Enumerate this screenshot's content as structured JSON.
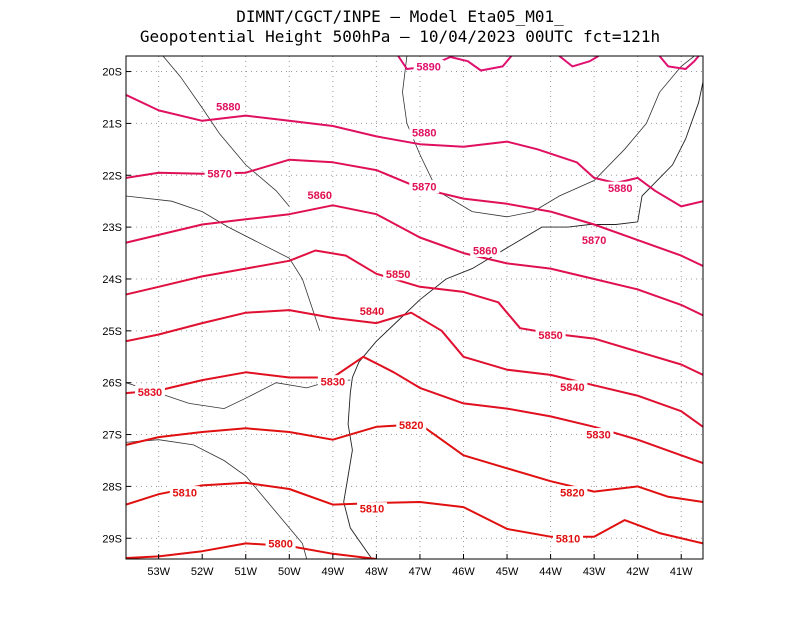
{
  "header": {
    "line1": "DIMNT/CGCT/INPE –  Model Eta05_M01_",
    "line2": "Geopotential Height 500hPa –  10/04/2023 00UTC fct=121h"
  },
  "map": {
    "lon_range": [
      -53.75,
      -40.5
    ],
    "lat_range": [
      -29.4,
      -19.7
    ],
    "x_ticks": [
      {
        "value": -53,
        "label": "53W"
      },
      {
        "value": -52,
        "label": "52W"
      },
      {
        "value": -51,
        "label": "51W"
      },
      {
        "value": -50,
        "label": "50W"
      },
      {
        "value": -49,
        "label": "49W"
      },
      {
        "value": -48,
        "label": "48W"
      },
      {
        "value": -47,
        "label": "47W"
      },
      {
        "value": -46,
        "label": "46W"
      },
      {
        "value": -45,
        "label": "45W"
      },
      {
        "value": -44,
        "label": "44W"
      },
      {
        "value": -43,
        "label": "43W"
      },
      {
        "value": -42,
        "label": "42W"
      },
      {
        "value": -41,
        "label": "41W"
      }
    ],
    "y_ticks": [
      {
        "value": -20,
        "label": "20S"
      },
      {
        "value": -21,
        "label": "21S"
      },
      {
        "value": -22,
        "label": "22S"
      },
      {
        "value": -23,
        "label": "23S"
      },
      {
        "value": -24,
        "label": "24S"
      },
      {
        "value": -25,
        "label": "25S"
      },
      {
        "value": -26,
        "label": "26S"
      },
      {
        "value": -27,
        "label": "27S"
      },
      {
        "value": -28,
        "label": "28S"
      },
      {
        "value": -29,
        "label": "29S"
      }
    ],
    "coastline": [
      [
        -48.1,
        -29.4
      ],
      [
        -48.6,
        -28.8
      ],
      [
        -48.75,
        -28.3
      ],
      [
        -48.65,
        -27.8
      ],
      [
        -48.55,
        -27.3
      ],
      [
        -48.65,
        -26.8
      ],
      [
        -48.6,
        -26.2
      ],
      [
        -48.55,
        -25.9
      ],
      [
        -48.4,
        -25.6
      ],
      [
        -48.0,
        -25.2
      ],
      [
        -47.5,
        -24.8
      ],
      [
        -47.0,
        -24.4
      ],
      [
        -46.4,
        -24.0
      ],
      [
        -45.8,
        -23.8
      ],
      [
        -45.3,
        -23.55
      ],
      [
        -44.7,
        -23.25
      ],
      [
        -44.2,
        -23.0
      ],
      [
        -43.6,
        -23.0
      ],
      [
        -43.1,
        -22.95
      ],
      [
        -42.5,
        -22.95
      ],
      [
        -42.0,
        -22.9
      ],
      [
        -41.9,
        -22.4
      ],
      [
        -41.2,
        -21.8
      ],
      [
        -40.9,
        -21.3
      ],
      [
        -40.6,
        -20.6
      ],
      [
        -40.5,
        -20.2
      ]
    ],
    "state_borders": [
      [
        [
          -53.75,
          -27.15
        ],
        [
          -53.0,
          -27.1
        ],
        [
          -52.2,
          -27.2
        ],
        [
          -51.5,
          -27.5
        ],
        [
          -51.0,
          -27.8
        ],
        [
          -50.4,
          -28.4
        ],
        [
          -49.9,
          -28.9
        ],
        [
          -49.7,
          -29.1
        ],
        [
          -49.6,
          -29.4
        ]
      ],
      [
        [
          -53.75,
          -26.0
        ],
        [
          -53.0,
          -26.2
        ],
        [
          -52.3,
          -26.4
        ],
        [
          -51.5,
          -26.5
        ],
        [
          -51.0,
          -26.3
        ],
        [
          -50.3,
          -26.0
        ],
        [
          -49.6,
          -26.1
        ],
        [
          -49.0,
          -25.95
        ],
        [
          -48.6,
          -25.95
        ]
      ],
      [
        [
          -49.3,
          -25.0
        ],
        [
          -49.5,
          -24.5
        ],
        [
          -49.7,
          -24.0
        ],
        [
          -50.0,
          -23.6
        ],
        [
          -50.7,
          -23.3
        ],
        [
          -51.4,
          -23.0
        ],
        [
          -52.0,
          -22.7
        ],
        [
          -52.7,
          -22.5
        ],
        [
          -53.75,
          -22.4
        ]
      ],
      [
        [
          -50.0,
          -22.6
        ],
        [
          -50.3,
          -22.3
        ],
        [
          -51.0,
          -21.8
        ],
        [
          -51.6,
          -21.2
        ],
        [
          -52.0,
          -20.7
        ],
        [
          -52.5,
          -20.1
        ],
        [
          -52.9,
          -19.7
        ]
      ],
      [
        [
          -47.3,
          -19.7
        ],
        [
          -47.4,
          -20.4
        ],
        [
          -47.3,
          -21.0
        ],
        [
          -47.0,
          -21.6
        ],
        [
          -46.6,
          -22.3
        ],
        [
          -45.8,
          -22.7
        ],
        [
          -45.0,
          -22.8
        ],
        [
          -44.4,
          -22.7
        ]
      ],
      [
        [
          -44.4,
          -22.7
        ],
        [
          -43.8,
          -22.4
        ],
        [
          -43.0,
          -22.1
        ],
        [
          -42.3,
          -21.5
        ],
        [
          -41.8,
          -21.0
        ],
        [
          -41.5,
          -20.4
        ],
        [
          -41.0,
          -19.9
        ],
        [
          -40.7,
          -19.7
        ]
      ]
    ],
    "contours": [
      {
        "level": 5800,
        "color": "#e01010",
        "points": [
          [
            -53.75,
            -29.38
          ],
          [
            -53.0,
            -29.35
          ],
          [
            -52.0,
            -29.25
          ],
          [
            -51.0,
            -29.1
          ],
          [
            -50.0,
            -29.15
          ],
          [
            -49.0,
            -29.3
          ],
          [
            -48.0,
            -29.4
          ]
        ]
      },
      {
        "level": 5810,
        "color": "#e01010",
        "points": [
          [
            -53.75,
            -28.35
          ],
          [
            -53.0,
            -28.15
          ],
          [
            -52.0,
            -27.98
          ],
          [
            -51.0,
            -27.93
          ],
          [
            -50.0,
            -28.05
          ],
          [
            -49.0,
            -28.35
          ],
          [
            -48.0,
            -28.32
          ],
          [
            -47.0,
            -28.3
          ],
          [
            -46.0,
            -28.4
          ],
          [
            -45.0,
            -28.82
          ],
          [
            -44.0,
            -28.97
          ],
          [
            -43.0,
            -28.97
          ],
          [
            -42.3,
            -28.65
          ],
          [
            -41.5,
            -28.9
          ],
          [
            -40.5,
            -29.1
          ]
        ]
      },
      {
        "level": 5820,
        "color": "#e01010",
        "points": [
          [
            -53.75,
            -27.2
          ],
          [
            -53.0,
            -27.05
          ],
          [
            -52.0,
            -26.95
          ],
          [
            -51.0,
            -26.88
          ],
          [
            -50.0,
            -26.95
          ],
          [
            -49.0,
            -27.1
          ],
          [
            -48.0,
            -26.85
          ],
          [
            -47.0,
            -26.8
          ],
          [
            -46.0,
            -27.4
          ],
          [
            -45.0,
            -27.65
          ],
          [
            -44.0,
            -27.9
          ],
          [
            -43.0,
            -28.1
          ],
          [
            -42.0,
            -28.0
          ],
          [
            -41.3,
            -28.2
          ],
          [
            -40.5,
            -28.3
          ]
        ]
      },
      {
        "level": 5830,
        "color": "#e01020",
        "points": [
          [
            -53.75,
            -26.2
          ],
          [
            -53.0,
            -26.15
          ],
          [
            -52.0,
            -25.95
          ],
          [
            -51.0,
            -25.8
          ],
          [
            -50.0,
            -25.9
          ],
          [
            -49.0,
            -25.9
          ],
          [
            -48.3,
            -25.5
          ],
          [
            -47.6,
            -25.8
          ],
          [
            -47.0,
            -26.1
          ],
          [
            -46.0,
            -26.4
          ],
          [
            -45.0,
            -26.5
          ],
          [
            -44.0,
            -26.65
          ],
          [
            -43.0,
            -26.85
          ],
          [
            -42.0,
            -27.1
          ],
          [
            -41.0,
            -27.4
          ],
          [
            -40.5,
            -27.55
          ]
        ]
      },
      {
        "level": 5840,
        "color": "#e01030",
        "points": [
          [
            -53.75,
            -25.2
          ],
          [
            -53.0,
            -25.07
          ],
          [
            -52.0,
            -24.85
          ],
          [
            -51.0,
            -24.65
          ],
          [
            -50.0,
            -24.6
          ],
          [
            -49.0,
            -24.75
          ],
          [
            -48.0,
            -24.85
          ],
          [
            -47.2,
            -24.65
          ],
          [
            -46.5,
            -25.0
          ],
          [
            -46.0,
            -25.5
          ],
          [
            -45.0,
            -25.75
          ],
          [
            -44.0,
            -25.85
          ],
          [
            -43.0,
            -26.05
          ],
          [
            -42.0,
            -26.25
          ],
          [
            -41.0,
            -26.55
          ],
          [
            -40.5,
            -26.85
          ]
        ]
      },
      {
        "level": 5850,
        "color": "#e01040",
        "points": [
          [
            -53.75,
            -24.3
          ],
          [
            -53.0,
            -24.15
          ],
          [
            -52.0,
            -23.95
          ],
          [
            -51.0,
            -23.8
          ],
          [
            -50.0,
            -23.65
          ],
          [
            -49.4,
            -23.45
          ],
          [
            -48.7,
            -23.55
          ],
          [
            -48.0,
            -23.9
          ],
          [
            -47.0,
            -24.15
          ],
          [
            -46.0,
            -24.25
          ],
          [
            -45.2,
            -24.45
          ],
          [
            -44.7,
            -24.95
          ],
          [
            -44.0,
            -25.05
          ],
          [
            -43.0,
            -25.15
          ],
          [
            -42.0,
            -25.4
          ],
          [
            -41.0,
            -25.65
          ],
          [
            -40.5,
            -25.85
          ]
        ]
      },
      {
        "level": 5860,
        "color": "#e01050",
        "points": [
          [
            -53.75,
            -23.3
          ],
          [
            -53.0,
            -23.15
          ],
          [
            -52.0,
            -22.95
          ],
          [
            -51.0,
            -22.85
          ],
          [
            -50.0,
            -22.75
          ],
          [
            -49.0,
            -22.58
          ],
          [
            -48.0,
            -22.75
          ],
          [
            -47.0,
            -23.2
          ],
          [
            -46.0,
            -23.5
          ],
          [
            -45.0,
            -23.7
          ],
          [
            -44.0,
            -23.8
          ],
          [
            -43.0,
            -24.0
          ],
          [
            -42.0,
            -24.2
          ],
          [
            -41.0,
            -24.5
          ],
          [
            -40.5,
            -24.7
          ]
        ]
      },
      {
        "level": 5870,
        "color": "#e01058",
        "points": [
          [
            -53.75,
            -22.05
          ],
          [
            -53.0,
            -21.95
          ],
          [
            -52.0,
            -21.97
          ],
          [
            -51.0,
            -21.95
          ],
          [
            -50.0,
            -21.7
          ],
          [
            -49.0,
            -21.75
          ],
          [
            -48.0,
            -21.9
          ],
          [
            -47.0,
            -22.25
          ],
          [
            -46.0,
            -22.45
          ],
          [
            -45.0,
            -22.55
          ],
          [
            -44.0,
            -22.7
          ],
          [
            -43.0,
            -22.95
          ],
          [
            -42.0,
            -23.25
          ],
          [
            -41.0,
            -23.55
          ],
          [
            -40.5,
            -23.75
          ]
        ]
      },
      {
        "level": 5880,
        "color": "#e01060",
        "points": [
          [
            -53.75,
            -20.45
          ],
          [
            -53.0,
            -20.75
          ],
          [
            -52.0,
            -20.95
          ],
          [
            -51.0,
            -20.85
          ],
          [
            -50.0,
            -20.95
          ],
          [
            -49.0,
            -21.05
          ],
          [
            -48.0,
            -21.25
          ],
          [
            -47.0,
            -21.4
          ],
          [
            -46.0,
            -21.45
          ],
          [
            -45.0,
            -21.35
          ],
          [
            -44.3,
            -21.5
          ],
          [
            -43.4,
            -21.75
          ],
          [
            -43.0,
            -22.05
          ],
          [
            -42.5,
            -22.15
          ],
          [
            -42.0,
            -22.05
          ],
          [
            -41.6,
            -22.3
          ],
          [
            -41.0,
            -22.6
          ],
          [
            -40.5,
            -22.5
          ]
        ]
      },
      {
        "level": 5890,
        "color": "#e01070",
        "points": [
          [
            -47.5,
            -19.7
          ],
          [
            -47.3,
            -19.95
          ],
          [
            -46.8,
            -19.9
          ],
          [
            -46.3,
            -19.72
          ],
          [
            -45.9,
            -19.8
          ],
          [
            -45.6,
            -19.98
          ],
          [
            -45.1,
            -19.9
          ],
          [
            -44.9,
            -19.7
          ]
        ]
      },
      {
        "level": 5890,
        "color": "#e01070",
        "points": [
          [
            -43.8,
            -19.7
          ],
          [
            -43.5,
            -19.9
          ],
          [
            -43.1,
            -19.8
          ],
          [
            -42.9,
            -19.7
          ]
        ]
      },
      {
        "level": 5890,
        "color": "#e01070",
        "points": [
          [
            -41.5,
            -19.7
          ],
          [
            -41.3,
            -19.9
          ],
          [
            -40.9,
            -19.95
          ],
          [
            -40.7,
            -19.8
          ],
          [
            -40.6,
            -19.7
          ]
        ]
      }
    ],
    "contour_labels": [
      {
        "text": "5800",
        "lon": -50.2,
        "lat": -29.1,
        "color": "#e01010"
      },
      {
        "text": "5810",
        "lon": -52.4,
        "lat": -28.12,
        "color": "#e01010"
      },
      {
        "text": "5810",
        "lon": -48.1,
        "lat": -28.43,
        "color": "#e01010"
      },
      {
        "text": "5810",
        "lon": -43.6,
        "lat": -29.0,
        "color": "#e01010"
      },
      {
        "text": "5820",
        "lon": -47.2,
        "lat": -26.82,
        "color": "#e01010"
      },
      {
        "text": "5820",
        "lon": -43.5,
        "lat": -28.12,
        "color": "#e01010"
      },
      {
        "text": "5830",
        "lon": -53.2,
        "lat": -26.18,
        "color": "#e01020"
      },
      {
        "text": "5830",
        "lon": -49.0,
        "lat": -25.98,
        "color": "#e01020"
      },
      {
        "text": "5830",
        "lon": -42.9,
        "lat": -27.0,
        "color": "#e01020"
      },
      {
        "text": "5840",
        "lon": -48.1,
        "lat": -24.62,
        "color": "#e01030"
      },
      {
        "text": "5840",
        "lon": -43.5,
        "lat": -26.08,
        "color": "#e01030"
      },
      {
        "text": "5850",
        "lon": -47.5,
        "lat": -23.9,
        "color": "#e01040"
      },
      {
        "text": "5850",
        "lon": -44.0,
        "lat": -25.08,
        "color": "#e01040"
      },
      {
        "text": "5860",
        "lon": -49.3,
        "lat": -22.38,
        "color": "#e01050"
      },
      {
        "text": "5860",
        "lon": -45.5,
        "lat": -23.45,
        "color": "#e01050"
      },
      {
        "text": "5870",
        "lon": -51.6,
        "lat": -21.97,
        "color": "#e01058"
      },
      {
        "text": "5870",
        "lon": -46.9,
        "lat": -22.22,
        "color": "#e01058"
      },
      {
        "text": "5870",
        "lon": -43.0,
        "lat": -23.25,
        "color": "#e01058"
      },
      {
        "text": "5880",
        "lon": -51.4,
        "lat": -20.67,
        "color": "#e01060"
      },
      {
        "text": "5880",
        "lon": -46.9,
        "lat": -21.18,
        "color": "#e01060"
      },
      {
        "text": "5880",
        "lon": -42.4,
        "lat": -22.25,
        "color": "#e01060"
      },
      {
        "text": "5890",
        "lon": -46.8,
        "lat": -19.9,
        "color": "#e01070"
      }
    ]
  }
}
